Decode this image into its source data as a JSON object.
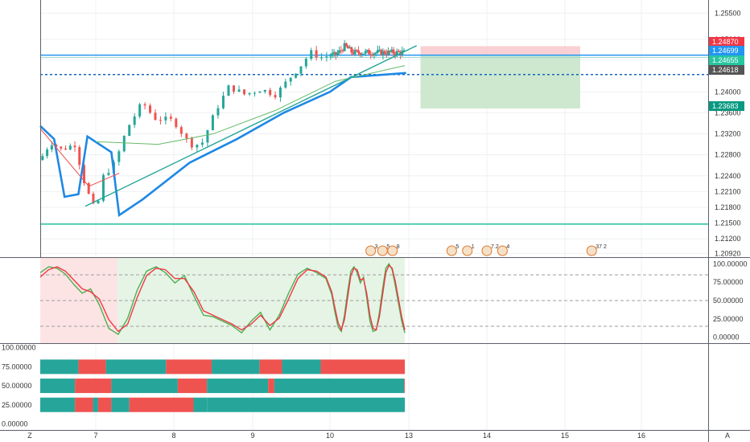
{
  "chart_data": [
    {
      "type": "candlestick",
      "instrument_panel": "price",
      "y_ticks": [
        "1.25500",
        "1.25000",
        "1.24618",
        "1.24000",
        "1.23600",
        "1.23200",
        "1.22800",
        "1.22400",
        "1.22100",
        "1.21800",
        "1.21500",
        "1.21200",
        "1.20920"
      ],
      "ylim": [
        1.2085,
        1.2575
      ],
      "price_labels": [
        {
          "value": "1.24870",
          "color": "#f23645",
          "text_color": "#ffffff"
        },
        {
          "value": "1.24699",
          "color": "#2196f3",
          "text_color": "#ffffff"
        },
        {
          "value": "1.24655",
          "color": "#26c6a0",
          "text_color": "#ffffff"
        },
        {
          "value": "1.24618",
          "color": "#555555",
          "text_color": "#ffffff"
        },
        {
          "value": "1.23683",
          "color": "#089981",
          "text_color": "#ffffff"
        }
      ],
      "position": {
        "entry": 1.24699,
        "stop": 1.2487,
        "target": 1.23683,
        "from_day": 13.15,
        "to_day": 15.2
      },
      "horizontal_lines": [
        {
          "value": 1.24699,
          "style": "solid",
          "color": "#2196f3"
        },
        {
          "value": 1.2433,
          "style": "dashed",
          "color": "#1565c0"
        },
        {
          "value": 1.2148,
          "style": "solid",
          "color": "#26c6a0"
        }
      ],
      "event_flags": [
        "3",
        "5",
        "8",
        "5",
        "1",
        "7.2",
        "4",
        "37 2"
      ],
      "candles_color_up": "#26a69a",
      "candles_color_down": "#ef5350"
    },
    {
      "type": "line",
      "instrument_panel": "stochastic",
      "y_ticks": [
        "100.00000",
        "75.00000",
        "50.00000",
        "25.00000",
        "0.00000"
      ],
      "ylim": [
        -8,
        108
      ],
      "series": [
        {
          "color": "#4caf50",
          "values": [
            88,
            96,
            94,
            86,
            72,
            60,
            66,
            44,
            12,
            4,
            26,
            64,
            90,
            96,
            88,
            74,
            84,
            56,
            30,
            28,
            22,
            16,
            6,
            22,
            34,
            10,
            30,
            60,
            86,
            94,
            88,
            80,
            58,
            34,
            14,
            8,
            30,
            62,
            90,
            96,
            88,
            74,
            82,
            54,
            22,
            8,
            10,
            34,
            66,
            94,
            100,
            92,
            70,
            46,
            22,
            6
          ]
        },
        {
          "color": "#f23645",
          "values": [
            82,
            92,
            96,
            90,
            78,
            66,
            62,
            52,
            24,
            8,
            18,
            54,
            84,
            94,
            92,
            80,
            80,
            62,
            36,
            30,
            24,
            18,
            10,
            18,
            30,
            16,
            26,
            52,
            80,
            92,
            90,
            82,
            62,
            40,
            20,
            10,
            24,
            54,
            84,
            94,
            92,
            78,
            80,
            60,
            30,
            12,
            10,
            28,
            58,
            88,
            98,
            94,
            76,
            52,
            28,
            10
          ]
        }
      ],
      "day_range": [
        6.2,
        12.85
      ],
      "bands": [
        {
          "from_day": 6.2,
          "to_day": 7.28,
          "color": "#fde4e4"
        },
        {
          "from_day": 7.28,
          "to_day": 12.85,
          "color": "#e6f4e6"
        }
      ]
    },
    {
      "type": "bar",
      "instrument_panel": "trend strips",
      "y_ticks": [
        "100.00000",
        "75.00000",
        "50.00000",
        "25.00000",
        "0.00000"
      ],
      "ylim": [
        -8,
        105
      ],
      "series": [
        {
          "level": 75,
          "segments": [
            {
              "from": 6.2,
              "to": 6.75,
              "state": "up"
            },
            {
              "from": 6.75,
              "to": 7.13,
              "state": "down"
            },
            {
              "from": 7.13,
              "to": 7.9,
              "state": "up"
            },
            {
              "from": 7.9,
              "to": 8.48,
              "state": "down"
            },
            {
              "from": 8.48,
              "to": 9.09,
              "state": "up"
            },
            {
              "from": 9.09,
              "to": 9.38,
              "state": "down"
            },
            {
              "from": 9.38,
              "to": 9.88,
              "state": "up"
            },
            {
              "from": 9.88,
              "to": 12.85,
              "state": "down"
            }
          ]
        },
        {
          "level": 50,
          "segments": [
            {
              "from": 6.2,
              "to": 6.7,
              "state": "up"
            },
            {
              "from": 6.7,
              "to": 7.2,
              "state": "down"
            },
            {
              "from": 7.2,
              "to": 8.05,
              "state": "up"
            },
            {
              "from": 8.05,
              "to": 8.42,
              "state": "down"
            },
            {
              "from": 8.42,
              "to": 9.2,
              "state": "up"
            },
            {
              "from": 9.2,
              "to": 9.28,
              "state": "down"
            },
            {
              "from": 9.28,
              "to": 12.82,
              "state": "up"
            },
            {
              "from": 12.82,
              "to": 12.85,
              "state": "down"
            }
          ]
        },
        {
          "level": 25,
          "segments": [
            {
              "from": 6.2,
              "to": 6.7,
              "state": "up"
            },
            {
              "from": 6.7,
              "to": 6.96,
              "state": "down"
            },
            {
              "from": 6.96,
              "to": 7.03,
              "state": "up"
            },
            {
              "from": 7.03,
              "to": 7.2,
              "state": "down"
            },
            {
              "from": 7.2,
              "to": 7.43,
              "state": "up"
            },
            {
              "from": 7.43,
              "to": 8.25,
              "state": "down"
            },
            {
              "from": 8.25,
              "to": 8.42,
              "state": "up"
            },
            {
              "from": 8.42,
              "to": 12.85,
              "state": "up"
            }
          ]
        }
      ],
      "colors": {
        "up": "#26a69a",
        "down": "#ef5350"
      }
    }
  ],
  "x_axis": {
    "labels": [
      "Z",
      "7",
      "8",
      "9",
      "10",
      "13",
      "14",
      "15",
      "16",
      "A"
    ]
  }
}
